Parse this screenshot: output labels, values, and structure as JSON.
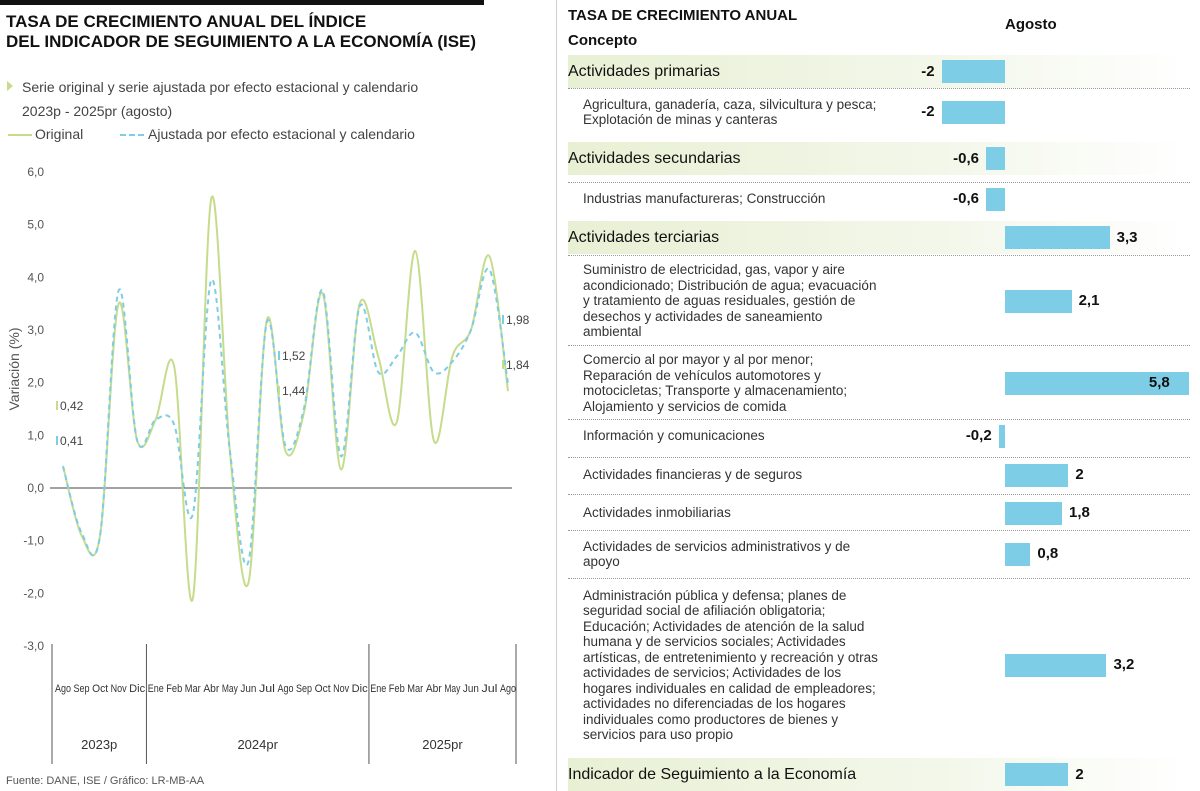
{
  "left": {
    "title_line1": "TASA DE CRECIMIENTO ANUAL DEL ÍNDICE",
    "title_line2": "DEL INDICADOR DE SEGUIMIENTO A LA ECONOMÍA (ISE)",
    "subtitle_line1": "Serie original y serie ajustada por efecto estacional y calendario",
    "subtitle_line2": "2023p - 2025pr (agosto)",
    "legend_original": "Original",
    "legend_adjusted": "Ajustada por efecto estacional y calendario",
    "source": "Fuente: DANE, ISE / Gráfico: LR-MB-AA"
  },
  "colors": {
    "original": "#c6dc8c",
    "adjusted": "#7ecde6",
    "bar": "#7ecde6"
  },
  "chart_data": [
    {
      "type": "line",
      "ylabel": "Variación (%)",
      "ylim": [
        -3,
        6
      ],
      "yticks": [
        "6,0",
        "5,0",
        "4,0",
        "3,0",
        "2,0",
        "1,0",
        "0,0",
        "-1,0",
        "-2,0",
        "-3,0"
      ],
      "x": [
        "Ago",
        "Sep",
        "Oct",
        "Nov",
        "Dic",
        "Ene",
        "Feb",
        "Mar",
        "Abr",
        "May",
        "Jun",
        "Jul",
        "Ago",
        "Sep",
        "Oct",
        "Nov",
        "Dic",
        "Ene",
        "Feb",
        "Mar",
        "Abr",
        "May",
        "Jun",
        "Jul",
        "Ago"
      ],
      "year_groups": [
        {
          "label": "2023p",
          "count": 5
        },
        {
          "label": "2024pr",
          "count": 12
        },
        {
          "label": "2025pr",
          "count": 8
        }
      ],
      "series": [
        {
          "name": "Original",
          "values": [
            0.42,
            -0.9,
            -0.9,
            3.5,
            0.9,
            1.3,
            2.3,
            -2.1,
            5.5,
            0.7,
            -1.8,
            3.2,
            0.7,
            1.44,
            3.7,
            0.35,
            3.5,
            2.5,
            1.25,
            4.5,
            0.9,
            2.5,
            3.0,
            4.4,
            1.84
          ]
        },
        {
          "name": "Ajustada por efecto estacional y calendario",
          "values": [
            0.41,
            -0.85,
            -0.9,
            3.75,
            0.9,
            1.3,
            1.2,
            -0.5,
            3.95,
            0.7,
            -1.4,
            3.15,
            0.8,
            1.52,
            3.75,
            0.6,
            3.45,
            2.2,
            2.5,
            2.95,
            2.2,
            2.4,
            3.0,
            4.15,
            1.98
          ]
        }
      ],
      "start_labels": {
        "original": "0,42",
        "adjusted": "0,41"
      },
      "mid_labels": {
        "adjusted": "1,52",
        "original": "1,44"
      },
      "end_labels": {
        "adjusted": "1,98",
        "original": "1,84"
      }
    },
    {
      "type": "bar",
      "title": "TASA DE CRECIMIENTO ANUAL",
      "column_header": "Concepto",
      "value_header": "Agosto",
      "rows": [
        {
          "kind": "main",
          "label": "Actividades primarias",
          "value": -2,
          "display": "-2"
        },
        {
          "kind": "sub",
          "label": "Agricultura, ganadería, caza, silvicultura y pesca; Explotación de minas y canteras",
          "value": -2,
          "display": "-2"
        },
        {
          "kind": "main",
          "label": "Actividades secundarias",
          "value": -0.6,
          "display": "-0,6"
        },
        {
          "kind": "sub",
          "label": "Industrias manufactureras; Construcción",
          "value": -0.6,
          "display": "-0,6"
        },
        {
          "kind": "main",
          "label": "Actividades terciarias",
          "value": 3.3,
          "display": "3,3"
        },
        {
          "kind": "sub",
          "label": "Suministro de electricidad, gas, vapor y aire acondicionado; Distribución de agua; evacuación y tratamiento de aguas residuales, gestión de desechos y actividades de saneamiento ambiental",
          "value": 2.1,
          "display": "2,1"
        },
        {
          "kind": "sub",
          "label": "Comercio al por mayor y al por menor; Reparación de vehículos automotores y motocicletas; Transporte y almacenamiento; Alojamiento y servicios de comida",
          "value": 5.8,
          "display": "5,8"
        },
        {
          "kind": "sub",
          "label": "Información y comunicaciones",
          "value": -0.2,
          "display": "-0,2"
        },
        {
          "kind": "sub",
          "label": "Actividades financieras y de seguros",
          "value": 2,
          "display": "2"
        },
        {
          "kind": "sub",
          "label": "Actividades inmobiliarias",
          "value": 1.8,
          "display": "1,8"
        },
        {
          "kind": "sub",
          "label": "Actividades de servicios administrativos y de apoyo",
          "value": 0.8,
          "display": "0,8"
        },
        {
          "kind": "sub",
          "label": "Administración pública y defensa; planes de seguridad social de afiliación obligatoria; Educación; Actividades de atención de la salud humana y de servicios sociales; Actividades artísticas, de entretenimiento y recreación y otras actividades de servicios; Actividades de los hogares individuales en calidad de empleadores; actividades no diferenciadas de los hogares individuales como productores de bienes y servicios para uso propio",
          "value": 3.2,
          "display": "3,2"
        },
        {
          "kind": "main",
          "label": "Indicador de Seguimiento a la Economía",
          "value": 2,
          "display": "2"
        }
      ]
    }
  ]
}
